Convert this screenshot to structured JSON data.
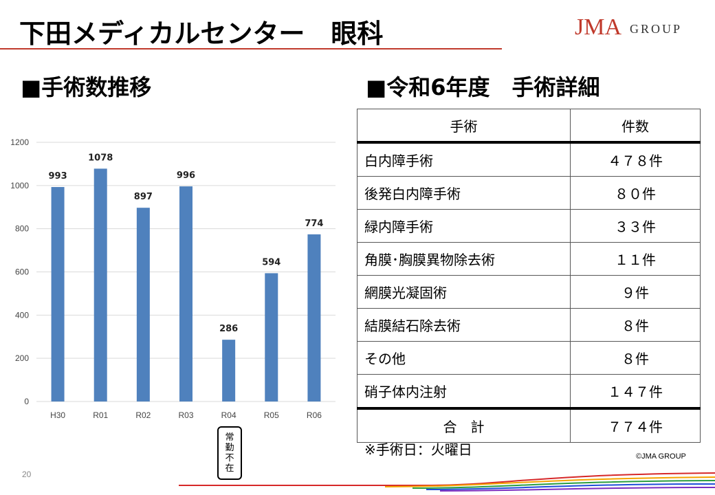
{
  "slide": {
    "title": "下田メディカルセンター　眼科",
    "page_number": "20",
    "copyright": "©JMA GROUP"
  },
  "logo": {
    "text_main": "JMA",
    "text_sub": "GROUP",
    "color": "#c0392b"
  },
  "left_section": {
    "heading": "■手術数推移"
  },
  "right_section": {
    "heading": "■令和6年度　手術詳細"
  },
  "callout": {
    "text": "常勤不在"
  },
  "table": {
    "headers": [
      "手術",
      "件数"
    ],
    "rows": [
      {
        "name": "白内障手術",
        "count": "４７８件"
      },
      {
        "name": "後発白内障手術",
        "count": "８０件"
      },
      {
        "name": "緑内障手術",
        "count": "３３件"
      },
      {
        "name": "角膜･胸膜異物除去術",
        "count": "１１件"
      },
      {
        "name": "網膜光凝固術",
        "count": "９件"
      },
      {
        "name": "結膜結石除去術",
        "count": "８件"
      },
      {
        "name": "その他",
        "count": "８件"
      },
      {
        "name": "硝子体内注射",
        "count": "１４７件"
      }
    ],
    "total": {
      "name": "合　計",
      "count": "７７４件"
    }
  },
  "note": "※手術日：火曜日",
  "chart_data": {
    "type": "bar",
    "categories": [
      "H30",
      "R01",
      "R02",
      "R03",
      "R04",
      "R05",
      "R06"
    ],
    "values": [
      993,
      1078,
      897,
      996,
      286,
      594,
      774
    ],
    "ylim": [
      0,
      1200
    ],
    "yticks": [
      0,
      200,
      400,
      600,
      800,
      1000,
      1200
    ],
    "grid": true,
    "bar_color": "#4f81bd"
  }
}
